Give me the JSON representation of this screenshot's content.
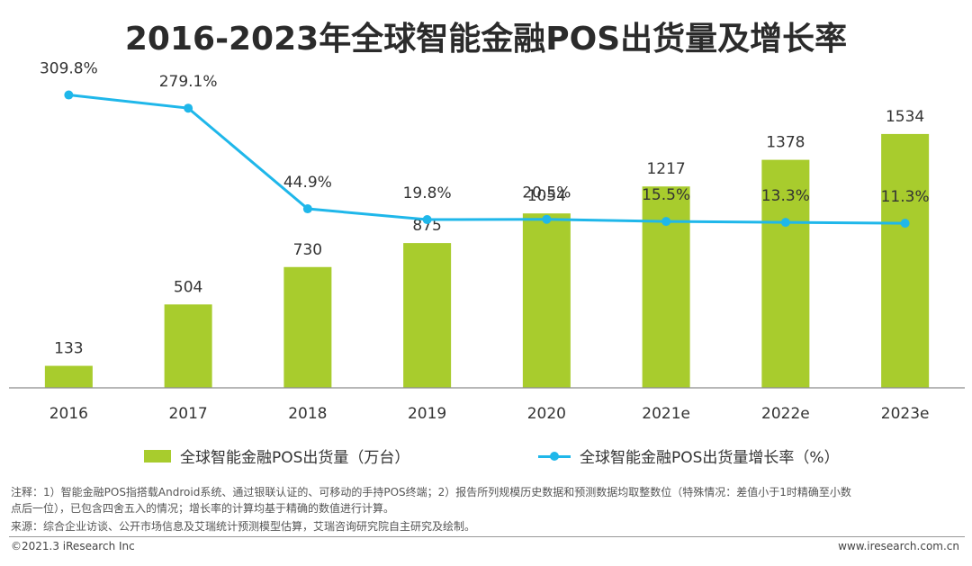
{
  "title": "2016-2023年全球智能金融POS出货量及增长率",
  "chart_data": {
    "type": "bar",
    "categories": [
      "2016",
      "2017",
      "2018",
      "2019",
      "2020",
      "2021e",
      "2022e",
      "2023e"
    ],
    "series": [
      {
        "name": "全球智能金融POS出货量（万台）",
        "type": "bar",
        "color": "#a8cc2d",
        "values": [
          133,
          504,
          730,
          875,
          1054,
          1217,
          1378,
          1534
        ]
      },
      {
        "name": "全球智能金融POS出货量增长率（%）",
        "type": "line",
        "color": "#1fb7ea",
        "values": [
          309.8,
          279.1,
          44.9,
          19.8,
          20.5,
          15.5,
          13.3,
          11.3
        ]
      }
    ],
    "bar_labels": [
      "133",
      "504",
      "730",
      "875",
      "1054",
      "1217",
      "1378",
      "1534"
    ],
    "line_labels": [
      "309.8%",
      "279.1%",
      "44.9%",
      "19.8%",
      "20.5%",
      "15.5%",
      "13.3%",
      "11.3%"
    ],
    "bar_ylim": [
      0,
      1800
    ],
    "line_ylim": [
      -380,
      380
    ],
    "grid": false,
    "legend_position": "bottom"
  },
  "notes": {
    "line1": "注释：1）智能金融POS指搭载Android系统、通过银联认证的、可移动的手持POS终端；2）报告所列规模历史数据和预测数据均取整数位（特殊情况：差值小于1时精确至小数",
    "line2": "点后一位），已包含四舍五入的情况；增长率的计算均基于精确的数值进行计算。",
    "source": "来源：综合企业访谈、公开市场信息及艾瑞统计预测模型估算，艾瑞咨询研究院自主研究及绘制。"
  },
  "footer": {
    "copyright": "©2021.3 iResearch Inc",
    "website": "www.iresearch.com.cn"
  }
}
